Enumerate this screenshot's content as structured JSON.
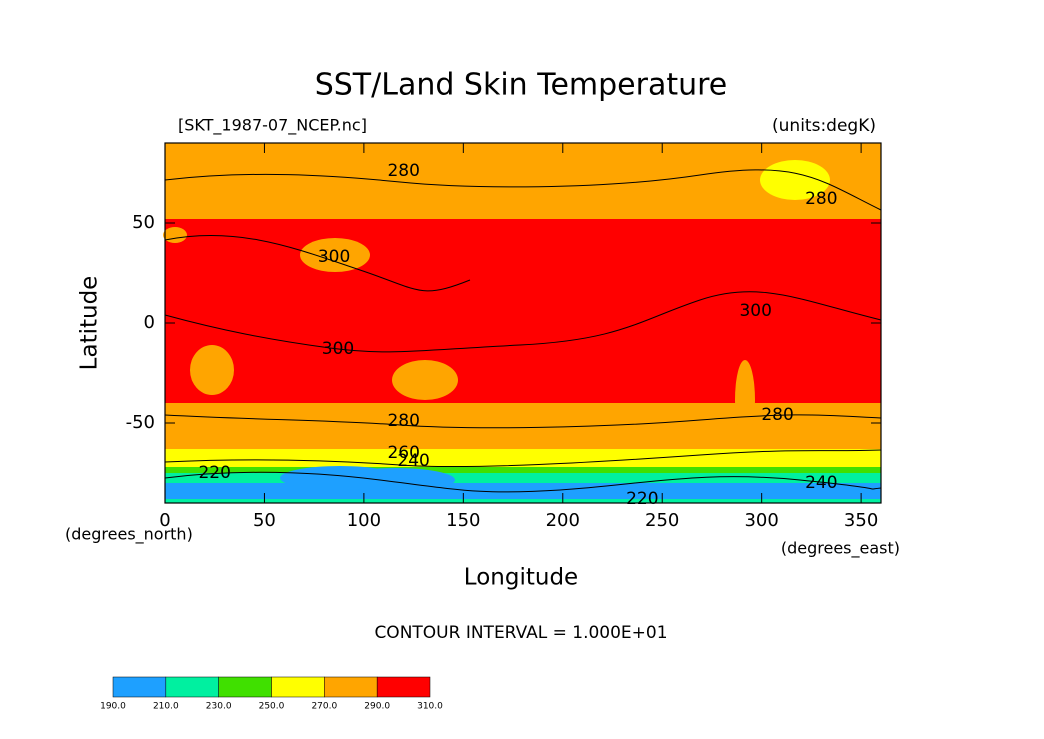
{
  "chart_data": {
    "type": "contourf",
    "title": "SST/Land Skin Temperature",
    "subtitle_left": "[SKT_1987-07_NCEP.nc]",
    "subtitle_right": "(units:degK)",
    "x_label": "Longitude",
    "y_label": "Latitude",
    "x_units": "(degrees_east)",
    "y_units": "(degrees_north)",
    "footer": "CONTOUR INTERVAL = 1.000E+01",
    "xlim": [
      0,
      360
    ],
    "xticks": [
      0,
      50,
      100,
      150,
      200,
      250,
      300,
      350
    ],
    "ylim": [
      -90,
      90
    ],
    "yticks": [
      -50,
      0,
      50
    ],
    "zonal": {
      "lat": [
        90,
        60,
        52,
        40,
        0,
        -35,
        -40,
        -60,
        -63,
        -66,
        -72,
        -75,
        -80,
        -88
      ],
      "values": [
        275,
        285,
        295,
        300,
        302,
        295,
        285,
        272,
        265,
        255,
        240,
        225,
        205,
        215
      ]
    },
    "contour_labels": [
      {
        "lon": 120,
        "lat": 76,
        "value": 280
      },
      {
        "lon": 330,
        "lat": 62,
        "value": 280
      },
      {
        "lon": 85,
        "lat": 33,
        "value": 300
      },
      {
        "lon": 87,
        "lat": -13,
        "value": 300
      },
      {
        "lon": 297,
        "lat": 6,
        "value": 300
      },
      {
        "lon": 120,
        "lat": -49,
        "value": 280
      },
      {
        "lon": 308,
        "lat": -46,
        "value": 280
      },
      {
        "lon": 120,
        "lat": -65,
        "value": 260
      },
      {
        "lon": 125,
        "lat": -69,
        "value": 240
      },
      {
        "lon": 25,
        "lat": -75,
        "value": 220
      },
      {
        "lon": 240,
        "lat": -88,
        "value": 220
      },
      {
        "lon": 330,
        "lat": -80,
        "value": 240
      }
    ],
    "colorbar": {
      "levels": [
        {
          "value": 190,
          "label": "190.0"
        },
        {
          "value": 210,
          "label": "210.0"
        },
        {
          "value": 230,
          "label": "230.0"
        },
        {
          "value": 250,
          "label": "250.0"
        },
        {
          "value": 270,
          "label": "270.0"
        },
        {
          "value": 290,
          "label": "290.0"
        },
        {
          "value": 310,
          "label": "310.0"
        }
      ],
      "colors": [
        "#1ea0ff",
        "#00f0a0",
        "#40e000",
        "#ffff00",
        "#ffa500",
        "#ff0000"
      ]
    }
  }
}
